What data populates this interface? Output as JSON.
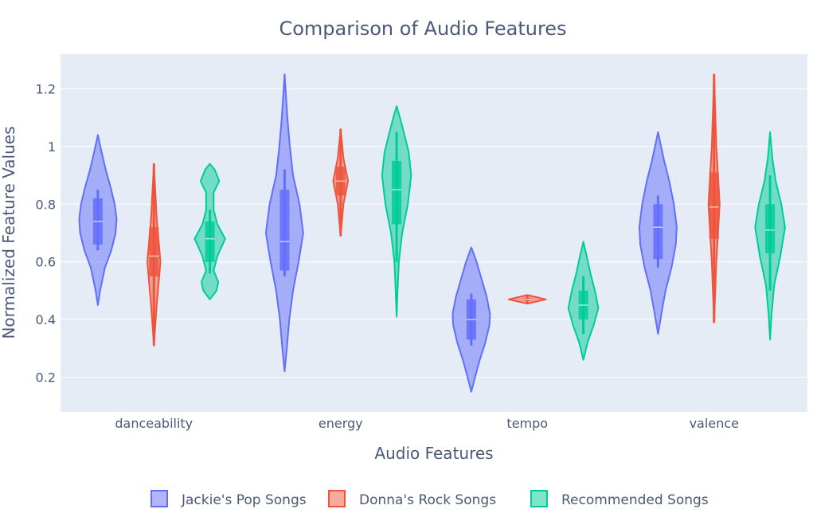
{
  "chart_data": {
    "type": "violin",
    "title": "Comparison of Audio Features",
    "xlabel": "Audio Features",
    "ylabel": "Normalized Feature Values",
    "categories": [
      "danceability",
      "energy",
      "tempo",
      "valence"
    ],
    "ylim": [
      0.08,
      1.32
    ],
    "yticks": [
      0.2,
      0.4,
      0.6,
      0.8,
      1,
      1.2
    ],
    "ytick_labels": [
      "0.2",
      "0.4",
      "0.6",
      "0.8",
      "1",
      "1.2"
    ],
    "grid": true,
    "legend_position": "bottom-center",
    "series": [
      {
        "name": "Jackie's Pop Songs",
        "color": "#636efa",
        "violins": [
          {
            "category": "danceability",
            "min": 0.45,
            "max": 1.04,
            "q1": 0.66,
            "median": 0.74,
            "q3": 0.82,
            "wlow": 0.64,
            "whigh": 0.85,
            "profile": [
              [
                0.45,
                0.0
              ],
              [
                0.5,
                0.12
              ],
              [
                0.58,
                0.38
              ],
              [
                0.64,
                0.72
              ],
              [
                0.7,
                0.95
              ],
              [
                0.75,
                1.0
              ],
              [
                0.8,
                0.9
              ],
              [
                0.86,
                0.68
              ],
              [
                0.92,
                0.42
              ],
              [
                0.98,
                0.2
              ],
              [
                1.04,
                0.0
              ]
            ]
          },
          {
            "category": "energy",
            "min": 0.22,
            "max": 1.25,
            "q1": 0.57,
            "median": 0.67,
            "q3": 0.85,
            "wlow": 0.55,
            "whigh": 0.92,
            "profile": [
              [
                0.22,
                0.0
              ],
              [
                0.3,
                0.12
              ],
              [
                0.4,
                0.25
              ],
              [
                0.5,
                0.45
              ],
              [
                0.6,
                0.75
              ],
              [
                0.7,
                1.0
              ],
              [
                0.8,
                0.8
              ],
              [
                0.9,
                0.45
              ],
              [
                1.0,
                0.28
              ],
              [
                1.1,
                0.15
              ],
              [
                1.25,
                0.0
              ]
            ]
          },
          {
            "category": "tempo",
            "min": 0.15,
            "max": 0.65,
            "q1": 0.33,
            "median": 0.4,
            "q3": 0.47,
            "wlow": 0.31,
            "whigh": 0.49,
            "profile": [
              [
                0.15,
                0.0
              ],
              [
                0.2,
                0.2
              ],
              [
                0.26,
                0.45
              ],
              [
                0.32,
                0.75
              ],
              [
                0.38,
                0.97
              ],
              [
                0.42,
                1.0
              ],
              [
                0.48,
                0.82
              ],
              [
                0.54,
                0.55
              ],
              [
                0.6,
                0.28
              ],
              [
                0.65,
                0.0
              ]
            ]
          },
          {
            "category": "valence",
            "min": 0.35,
            "max": 1.05,
            "q1": 0.61,
            "median": 0.72,
            "q3": 0.8,
            "wlow": 0.58,
            "whigh": 0.83,
            "profile": [
              [
                0.35,
                0.0
              ],
              [
                0.42,
                0.18
              ],
              [
                0.5,
                0.4
              ],
              [
                0.58,
                0.72
              ],
              [
                0.66,
                0.95
              ],
              [
                0.72,
                1.0
              ],
              [
                0.8,
                0.85
              ],
              [
                0.88,
                0.6
              ],
              [
                0.95,
                0.33
              ],
              [
                1.05,
                0.0
              ]
            ]
          }
        ]
      },
      {
        "name": "Donna's Rock Songs",
        "color": "#ef553b",
        "violins": [
          {
            "category": "danceability",
            "min": 0.31,
            "max": 0.94,
            "q1": 0.55,
            "median": 0.62,
            "q3": 0.72,
            "wlow": 0.31,
            "whigh": 0.94,
            "profile": [
              [
                0.31,
                0.0
              ],
              [
                0.45,
                0.15
              ],
              [
                0.6,
                0.35
              ],
              [
                0.75,
                0.15
              ],
              [
                0.94,
                0.0
              ]
            ]
          },
          {
            "category": "energy",
            "min": 0.69,
            "max": 1.06,
            "q1": 0.83,
            "median": 0.88,
            "q3": 0.93,
            "wlow": 0.69,
            "whigh": 1.06,
            "profile": [
              [
                0.69,
                0.0
              ],
              [
                0.8,
                0.15
              ],
              [
                0.88,
                0.4
              ],
              [
                0.96,
                0.15
              ],
              [
                1.06,
                0.0
              ]
            ]
          },
          {
            "category": "tempo",
            "min": 0.455,
            "max": 0.485,
            "q1": 0.466,
            "median": 0.47,
            "q3": 0.474,
            "wlow": 0.455,
            "whigh": 0.485,
            "profile": [
              [
                0.455,
                0.0
              ],
              [
                0.47,
                1.0
              ],
              [
                0.485,
                0.0
              ]
            ]
          },
          {
            "category": "valence",
            "min": 0.39,
            "max": 1.25,
            "q1": 0.68,
            "median": 0.79,
            "q3": 0.91,
            "wlow": 0.39,
            "whigh": 1.25,
            "profile": [
              [
                0.39,
                0.0
              ],
              [
                0.6,
                0.12
              ],
              [
                0.8,
                0.3
              ],
              [
                1.0,
                0.12
              ],
              [
                1.25,
                0.0
              ]
            ]
          }
        ]
      },
      {
        "name": "Recommended Songs",
        "color": "#00cc96",
        "violins": [
          {
            "category": "danceability",
            "min": 0.47,
            "max": 0.94,
            "q1": 0.6,
            "median": 0.68,
            "q3": 0.74,
            "wlow": 0.56,
            "whigh": 0.78,
            "profile": [
              [
                0.47,
                0.0
              ],
              [
                0.5,
                0.35
              ],
              [
                0.53,
                0.45
              ],
              [
                0.57,
                0.2
              ],
              [
                0.62,
                0.4
              ],
              [
                0.68,
                0.82
              ],
              [
                0.73,
                0.4
              ],
              [
                0.78,
                0.2
              ],
              [
                0.84,
                0.2
              ],
              [
                0.88,
                0.5
              ],
              [
                0.92,
                0.25
              ],
              [
                0.94,
                0.0
              ]
            ]
          },
          {
            "category": "energy",
            "min": 0.41,
            "max": 1.14,
            "q1": 0.73,
            "median": 0.85,
            "q3": 0.95,
            "wlow": 0.6,
            "whigh": 1.05,
            "profile": [
              [
                0.41,
                0.0
              ],
              [
                0.5,
                0.05
              ],
              [
                0.6,
                0.12
              ],
              [
                0.7,
                0.3
              ],
              [
                0.8,
                0.6
              ],
              [
                0.9,
                0.78
              ],
              [
                0.98,
                0.65
              ],
              [
                1.05,
                0.38
              ],
              [
                1.1,
                0.18
              ],
              [
                1.14,
                0.0
              ]
            ]
          },
          {
            "category": "tempo",
            "min": 0.26,
            "max": 0.67,
            "q1": 0.4,
            "median": 0.45,
            "q3": 0.5,
            "wlow": 0.35,
            "whigh": 0.55,
            "profile": [
              [
                0.26,
                0.0
              ],
              [
                0.32,
                0.22
              ],
              [
                0.38,
                0.55
              ],
              [
                0.44,
                0.8
              ],
              [
                0.5,
                0.62
              ],
              [
                0.56,
                0.38
              ],
              [
                0.62,
                0.18
              ],
              [
                0.67,
                0.0
              ]
            ]
          },
          {
            "category": "valence",
            "min": 0.33,
            "max": 1.05,
            "q1": 0.63,
            "median": 0.71,
            "q3": 0.8,
            "wlow": 0.5,
            "whigh": 0.9,
            "profile": [
              [
                0.33,
                0.0
              ],
              [
                0.42,
                0.08
              ],
              [
                0.52,
                0.22
              ],
              [
                0.62,
                0.55
              ],
              [
                0.72,
                0.8
              ],
              [
                0.8,
                0.6
              ],
              [
                0.88,
                0.3
              ],
              [
                0.96,
                0.12
              ],
              [
                1.05,
                0.0
              ]
            ]
          }
        ]
      }
    ]
  }
}
